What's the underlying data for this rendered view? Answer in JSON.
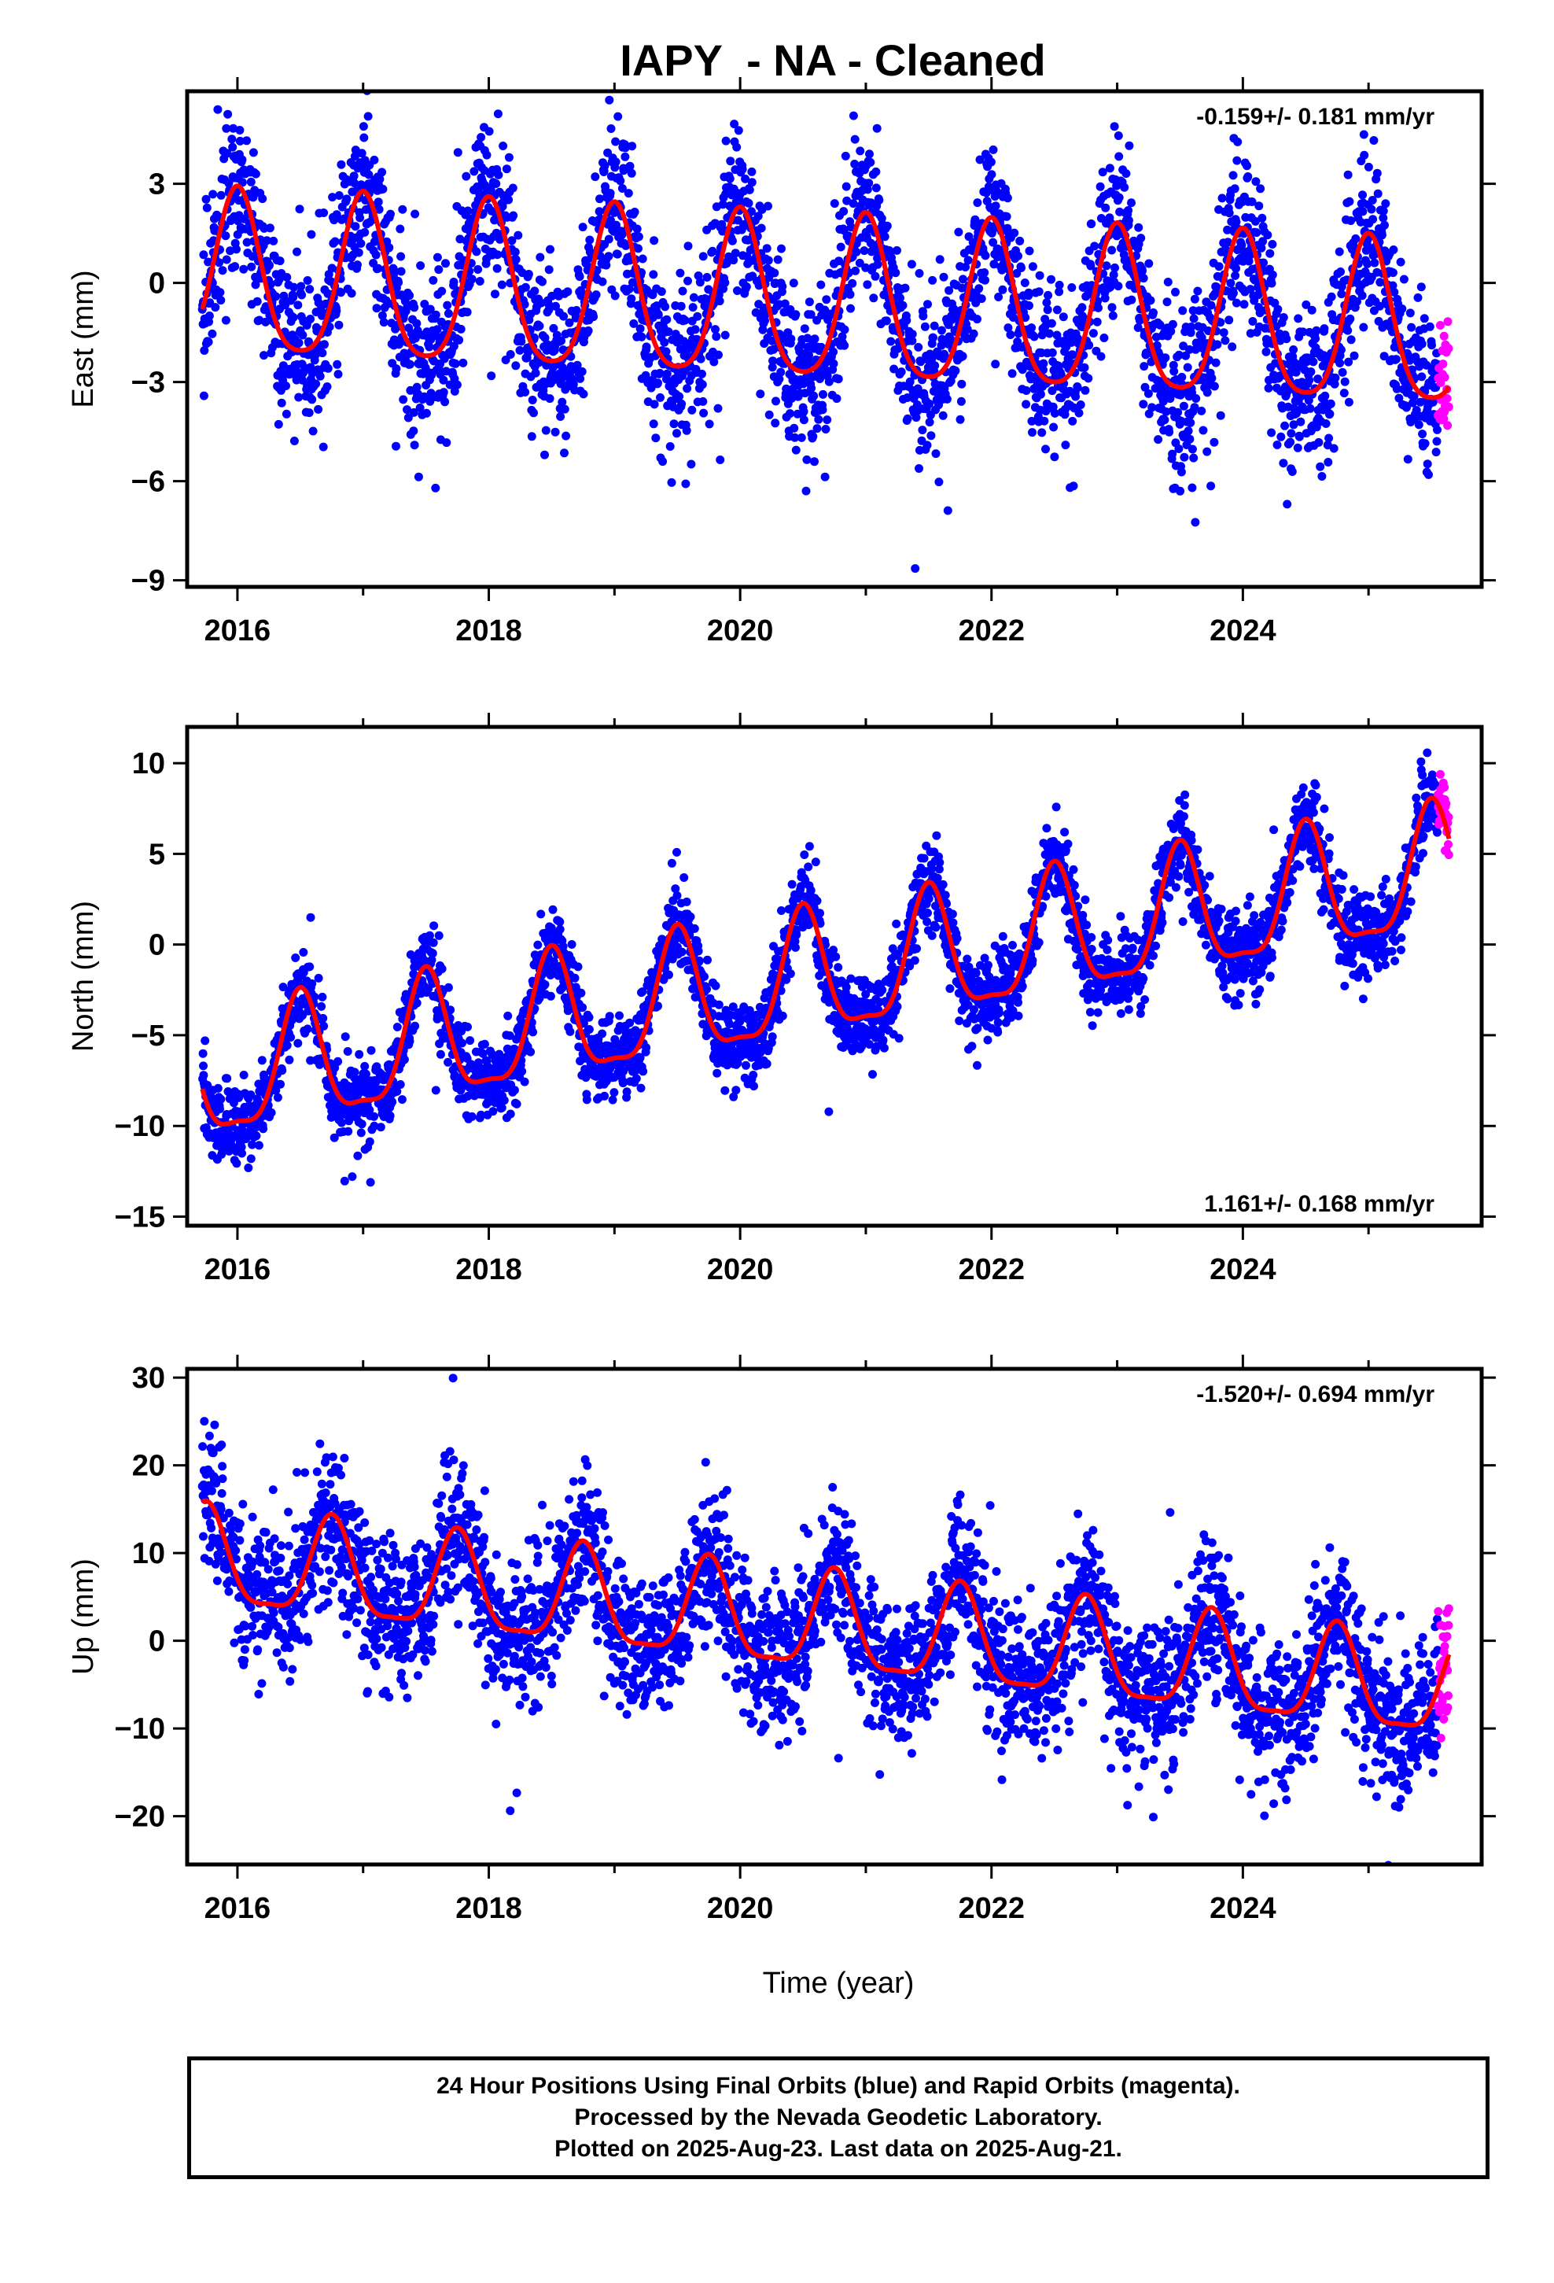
{
  "title": "IAPY  - NA - Cleaned",
  "x_axis_title": "Time (year)",
  "footer_lines": [
    "24 Hour Positions Using Final Orbits (blue) and Rapid Orbits (magenta).",
    "Processed by the Nevada Geodetic Laboratory.",
    "Plotted on 2025-Aug-23. Last data on 2025-Aug-21."
  ],
  "colors": {
    "final_orbits": "#0000ff",
    "rapid_orbits": "#ff00ff",
    "model_fit": "#ff0000",
    "frame": "#000000"
  },
  "chart_data": [
    {
      "type": "scatter",
      "component": "East",
      "ylabel": "East (mm)",
      "xlabel": "",
      "rate_text": "-0.159+/- 0.181 mm/yr",
      "rate_position": "top-right",
      "xlim": [
        2015.6,
        2025.9
      ],
      "ylim": [
        -9.2,
        5.8
      ],
      "x_ticks": [
        2016,
        2018,
        2020,
        2022,
        2024
      ],
      "y_ticks": [
        3,
        0,
        -3,
        -6,
        -9
      ],
      "data_start": 2015.72,
      "data_end": 2025.64,
      "rapid_start": 2025.55,
      "model": {
        "offset": -0.6,
        "trend_mm_per_yr": -0.159,
        "ref_year": 2020.0,
        "annual_cos": 2.45,
        "annual_sin": 0.0,
        "annual_phase_year": 2016.0,
        "semiannual_cos": 0.45,
        "semiannual_sin": 0.0
      },
      "scatter_sd": 1.25,
      "grid": false
    },
    {
      "type": "scatter",
      "component": "North",
      "ylabel": "North (mm)",
      "xlabel": "",
      "rate_text": "1.161+/- 0.168 mm/yr",
      "rate_position": "bottom-right",
      "xlim": [
        2015.6,
        2025.9
      ],
      "ylim": [
        -15.5,
        12.0
      ],
      "x_ticks": [
        2016,
        2018,
        2020,
        2022,
        2024
      ],
      "y_ticks": [
        10,
        5,
        0,
        -5,
        -10,
        -15
      ],
      "data_start": 2015.72,
      "data_end": 2025.64,
      "rapid_start": 2025.55,
      "model": {
        "offset": -2.7,
        "trend_mm_per_yr": 1.161,
        "ref_year": 2020.0,
        "annual_cos": 3.4,
        "annual_sin": 0.0,
        "annual_phase_year": 2016.5,
        "semiannual_cos": 1.0,
        "semiannual_sin": 0.0
      },
      "scatter_sd": 1.1,
      "grid": false
    },
    {
      "type": "scatter",
      "component": "Up",
      "ylabel": "Up (mm)",
      "xlabel": "Time (year)",
      "rate_text": "-1.520+/- 0.694 mm/yr",
      "rate_position": "top-right",
      "xlim": [
        2015.6,
        2025.9
      ],
      "ylim": [
        -25.5,
        31.0
      ],
      "x_ticks": [
        2016,
        2018,
        2020,
        2022,
        2024
      ],
      "y_ticks": [
        30,
        20,
        10,
        0,
        -10,
        -20
      ],
      "data_start": 2015.72,
      "data_end": 2025.64,
      "rapid_start": 2025.55,
      "model": {
        "offset": 2.5,
        "trend_mm_per_yr": -1.52,
        "ref_year": 2020.0,
        "annual_cos": 5.5,
        "annual_sin": 0.0,
        "annual_phase_year": 2016.75,
        "semiannual_cos": 1.5,
        "semiannual_sin": 0.0
      },
      "scatter_sd": 4.2,
      "grid": false
    }
  ]
}
